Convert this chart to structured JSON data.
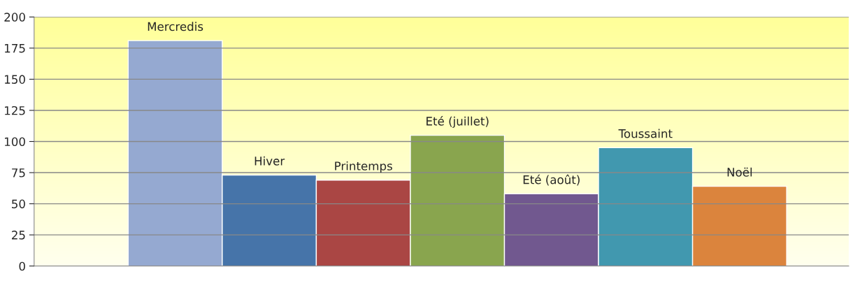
{
  "chart_data": {
    "type": "bar",
    "categories": [
      "Mercredis",
      "Hiver",
      "Printemps",
      "Eté (juillet)",
      "Eté (août)",
      "Toussaint",
      "Noël"
    ],
    "values": [
      181,
      73,
      69,
      105,
      58,
      95,
      64
    ],
    "colors": [
      "#95a9d1",
      "#4674a9",
      "#aa4644",
      "#89a54e",
      "#71588f",
      "#4198af",
      "#db843d"
    ],
    "ylim": [
      0,
      200
    ],
    "yticks": [
      0,
      25,
      50,
      75,
      100,
      125,
      150,
      175,
      200
    ],
    "grid": "y"
  }
}
